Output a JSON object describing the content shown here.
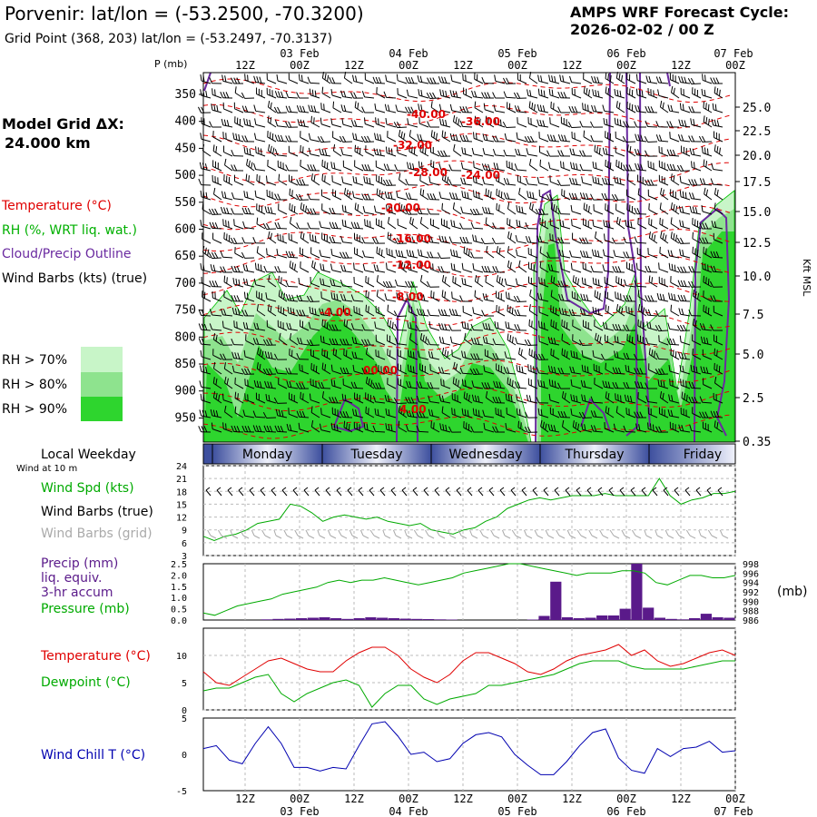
{
  "header": {
    "title": "Porvenir:  lat/lon = (-53.2500, -70.3200)",
    "subtitle": "Grid Point (368, 203) lat/lon = (-53.2497, -70.3137)",
    "cycle_label": "AMPS WRF Forecast Cycle:",
    "cycle_value": "2026-02-02 / 00  Z"
  },
  "legend": {
    "model_grid": "Model Grid ΔX:",
    "model_dx": "24.000 km",
    "temperature": "Temperature (°C)",
    "rh": "RH (%, WRT liq. wat.)",
    "cloud": "Cloud/Precip Outline",
    "wind": "Wind Barbs (kts) (true)",
    "rh70": "RH > 70%",
    "rh80": "RH > 80%",
    "rh90": "RH > 90%"
  },
  "colors": {
    "temp": "#e00000",
    "rh": "#00b000",
    "cloud": "#6a2aa0",
    "precip": "#5a1a8a",
    "pressure": "#00aa00",
    "windchill": "#0000b0",
    "rh70": "#c8f5c8",
    "rh80": "#8ee38e",
    "rh90": "#2ed52e"
  },
  "time_axis": {
    "top_dates": [
      "03 Feb",
      "04 Feb",
      "05 Feb",
      "06 Feb",
      "07 Feb"
    ],
    "bottom_dates": [
      "03 Feb",
      "04 Feb",
      "05 Feb",
      "06 Feb",
      "07 Feb"
    ],
    "hour_labels": [
      "12Z",
      "00Z",
      "12Z",
      "00Z",
      "12Z",
      "00Z",
      "12Z",
      "00Z",
      "12Z",
      "00Z"
    ]
  },
  "weekday": {
    "title": "Local Weekday",
    "wind_note": "Wind at 10 m",
    "days": [
      "Monday",
      "Tuesday",
      "Wednesday",
      "Thursday",
      "Friday"
    ]
  },
  "chart_data": [
    {
      "type": "cross-section",
      "ylabel_left": "P (mb)",
      "ylabel_right": "Kft MSL",
      "pressure_ticks": [
        "350",
        "400",
        "450",
        "500",
        "550",
        "600",
        "650",
        "700",
        "750",
        "800",
        "850",
        "900",
        "950"
      ],
      "height_ticks": [
        "25.0",
        "22.5",
        "20.0",
        "17.5",
        "15.0",
        "12.5",
        "10.0",
        "7.5",
        "5.0",
        "2.5",
        "0.35"
      ],
      "temperature_contour_labels": [
        "-40.00",
        "-36.00",
        "-32.00",
        "-28.00",
        "-24.00",
        "-20.00",
        "-16.00",
        "-12.00",
        "-8.00",
        "-4.00",
        "00.00",
        "4.00"
      ]
    },
    {
      "type": "line",
      "title": "Wind Spd (kts)",
      "barb_label_true": "Wind Barbs (true)",
      "barb_label_grid": "Wind Barbs (grid)",
      "y_ticks": [
        "24",
        "21",
        "18",
        "15",
        "12",
        "9",
        "6",
        "3"
      ],
      "ylim": [
        3,
        24
      ],
      "series": [
        {
          "name": "Wind Spd (kts)",
          "values": [
            7.5,
            6.5,
            7.5,
            8,
            9,
            10.5,
            11,
            11.5,
            15,
            14.5,
            13,
            11,
            12,
            12.5,
            12,
            11.5,
            12,
            11,
            10.5,
            10,
            10.5,
            9,
            8.5,
            8,
            9,
            9.5,
            11,
            12,
            14,
            15,
            16,
            16.5,
            16,
            16.5,
            17,
            17,
            17,
            17.5,
            17,
            17,
            17,
            17,
            21,
            17,
            15,
            16,
            16.5,
            17.5,
            17.5,
            18
          ]
        }
      ]
    },
    {
      "type": "bar",
      "title": "Precip (mm)",
      "title_line2": "liq. equiv.",
      "title_line3": "3-hr accum",
      "pressure_title": "Pressure (mb)",
      "unit_right": "(mb)",
      "y_ticks": [
        "2.5",
        "2.0",
        "1.5",
        "1.0",
        "0.5",
        "0.0"
      ],
      "y_ticks_right": [
        "998",
        "996",
        "994",
        "992",
        "990",
        "988",
        "986"
      ],
      "ylim": [
        0,
        2.5
      ],
      "ylim_right": [
        986,
        998
      ],
      "precip_values": [
        0,
        0,
        0,
        0,
        0,
        0.03,
        0.05,
        0.06,
        0.08,
        0.1,
        0.12,
        0.08,
        0.05,
        0.08,
        0.12,
        0.1,
        0.08,
        0.06,
        0.05,
        0.04,
        0.03,
        0.02,
        0,
        0,
        0,
        0,
        0,
        0,
        0.02,
        0.18,
        1.7,
        0.12,
        0.08,
        0.1,
        0.2,
        0.2,
        0.5,
        2.5,
        0.55,
        0.1,
        0.05,
        0.03,
        0.08,
        0.28,
        0.12,
        0.1
      ],
      "pressure_values": [
        987.5,
        987,
        988,
        989,
        989.5,
        990,
        990.5,
        991.5,
        992,
        992.5,
        993,
        994,
        994.5,
        994,
        994.5,
        994.5,
        995,
        994.5,
        994,
        993.5,
        994,
        994.5,
        995,
        996,
        996.5,
        997,
        997.5,
        998,
        998,
        997.5,
        997,
        996.5,
        996,
        995.5,
        996,
        996,
        996,
        996.5,
        996.5,
        996,
        994,
        993.5,
        994.5,
        995.5,
        995.5,
        995,
        995,
        995.5
      ]
    },
    {
      "type": "line",
      "title": "Temperature (°C)",
      "title2": "Dewpoint (°C)",
      "y_ticks": [
        "10",
        "5",
        "0"
      ],
      "ylim": [
        0,
        15
      ],
      "series": [
        {
          "name": "Temperature (°C)",
          "values": [
            7,
            5,
            4.5,
            6,
            7.5,
            9,
            9.5,
            8.5,
            7.5,
            7,
            7,
            9,
            10.5,
            11.5,
            11.5,
            10,
            7.5,
            6,
            5,
            6.5,
            9,
            10.5,
            10.5,
            9.5,
            8.5,
            7,
            6.5,
            7.5,
            9,
            10,
            10.5,
            11,
            12,
            10,
            11,
            9,
            8,
            8.5,
            9.5,
            10.5,
            11,
            10
          ]
        },
        {
          "name": "Dewpoint (°C)",
          "values": [
            3.5,
            4,
            4,
            5,
            6,
            6.5,
            3,
            1.5,
            3,
            4,
            5,
            5.5,
            4.5,
            0.5,
            3,
            4.5,
            4.5,
            2,
            1,
            2,
            2.5,
            3,
            4.5,
            4.5,
            5,
            5.5,
            6,
            6.5,
            7.5,
            8.5,
            9,
            9,
            9,
            8,
            7.5,
            7.5,
            7.5,
            7.5,
            8,
            8.5,
            9,
            9
          ]
        }
      ]
    },
    {
      "type": "line",
      "title": "Wind Chill T (°C)",
      "y_ticks": [
        "5",
        "0",
        "-5"
      ],
      "ylim": [
        -5,
        5
      ],
      "series": [
        {
          "name": "Wind Chill T (°C)",
          "values": [
            0.8,
            1.2,
            -0.8,
            -1.3,
            1.5,
            3.8,
            1.5,
            -1.8,
            -1.8,
            -2.3,
            -1.8,
            -2,
            1.2,
            4.2,
            4.5,
            2.5,
            0,
            0.3,
            -1,
            -0.6,
            1.5,
            2.7,
            3,
            2.4,
            0,
            -1.5,
            -2.8,
            -2.8,
            -1,
            1.2,
            3,
            3.5,
            -0.5,
            -2.2,
            -2.6,
            0.8,
            -0.3,
            0.8,
            1,
            1.8,
            0.3,
            0.5
          ]
        }
      ]
    }
  ]
}
